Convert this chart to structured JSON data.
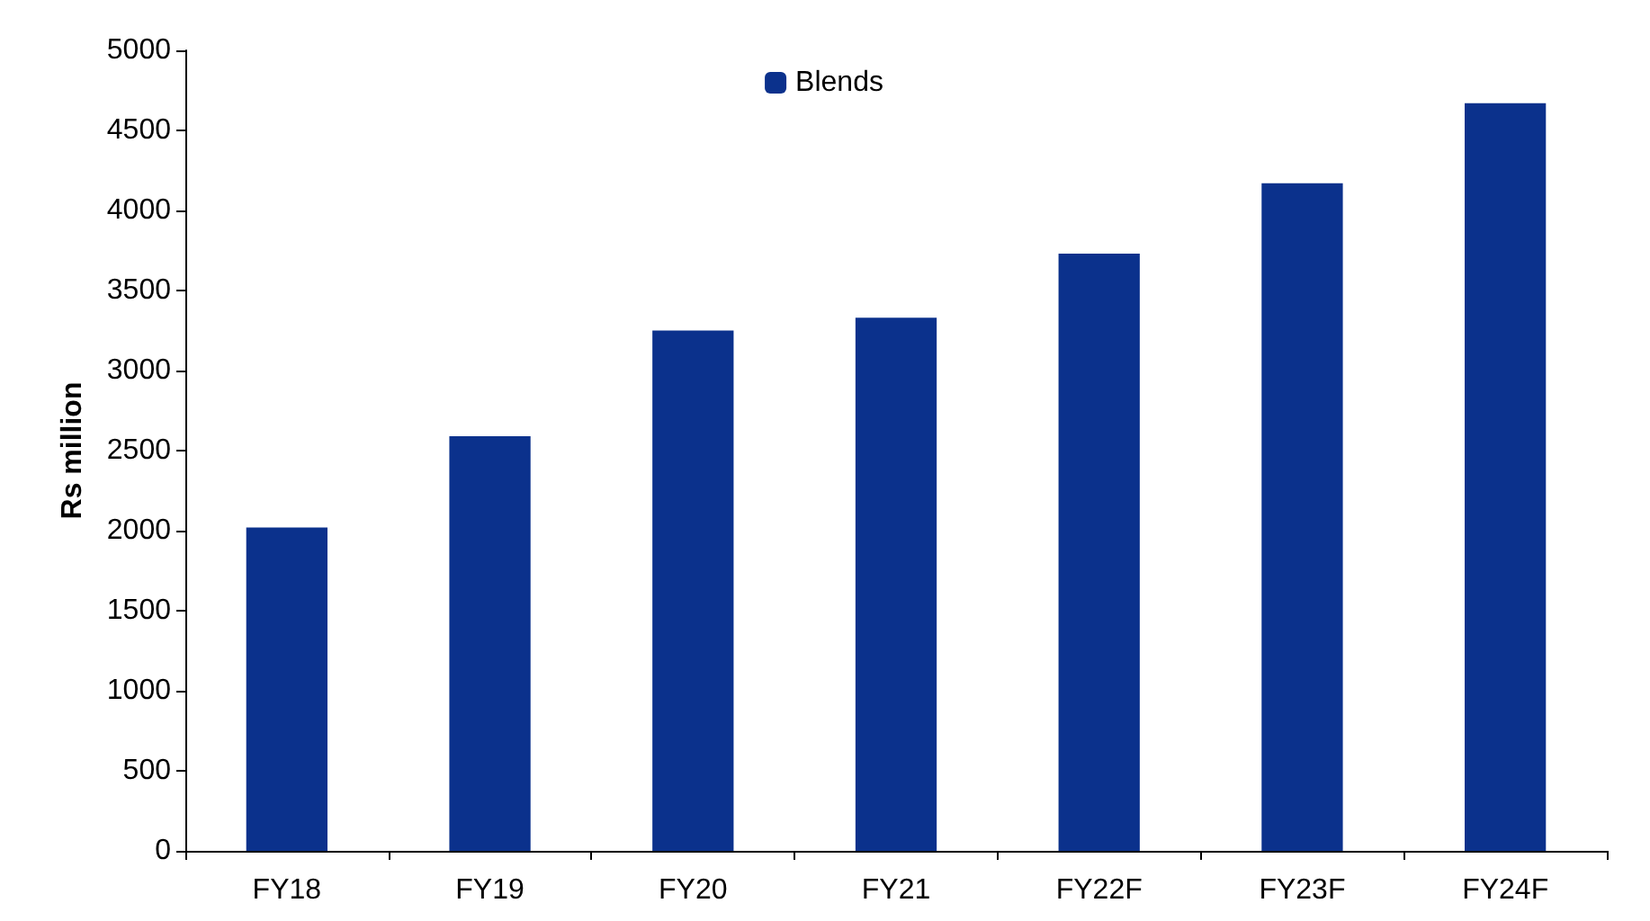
{
  "chart_data": {
    "type": "bar",
    "ylabel": "Rs million",
    "categories": [
      "FY18",
      "FY19",
      "FY20",
      "FY21",
      "FY22F",
      "FY23F",
      "FY24F"
    ],
    "series": [
      {
        "name": "Blends",
        "color": "#0b318c",
        "values": [
          2020,
          2590,
          3250,
          3330,
          3730,
          4170,
          4670
        ]
      }
    ],
    "ylim": [
      0,
      5000
    ],
    "yticks": [
      0,
      500,
      1000,
      1500,
      2000,
      2500,
      3000,
      3500,
      4000,
      4500,
      5000
    ],
    "grid": false,
    "legend": "top"
  }
}
